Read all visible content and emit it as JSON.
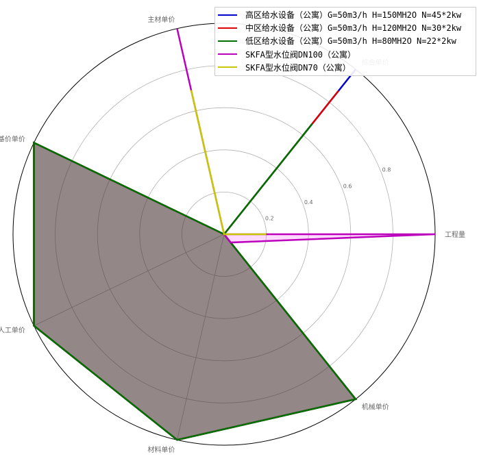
{
  "chart_data": {
    "type": "radar",
    "axes": [
      "工程量",
      "综合单价",
      "主材单价",
      "基价单价",
      "人工单价",
      "材料单价",
      "机械单价"
    ],
    "r_ticks": [
      0.2,
      0.4,
      0.6,
      0.8
    ],
    "r_tick_labels": [
      "0.2",
      "0.4",
      "0.6",
      "0.8"
    ],
    "r_max": 1.0,
    "grid": true,
    "legend_position": "top-right",
    "series": [
      {
        "name": "高区给水设备（公寓）G=50m3/h H=150MH2O N=45*2kw",
        "color": "#0000cc",
        "fill": "#0000cc",
        "values": [
          0.0,
          1.0,
          0.0,
          1.0,
          1.0,
          1.0,
          1.0
        ]
      },
      {
        "name": "中区给水设备（公寓）G=50m3/h H=120MH2O N=30*2kw",
        "color": "#dd0000",
        "fill": "#dd0000",
        "values": [
          0.0,
          0.87,
          0.0,
          1.0,
          1.0,
          1.0,
          1.0
        ]
      },
      {
        "name": "低区给水设备（公寓）G=50m3/h H=80MH2O N=22*2kw",
        "color": "#007000",
        "fill": "#007000",
        "values": [
          0.0,
          0.67,
          0.0,
          1.0,
          1.0,
          1.0,
          1.0
        ]
      },
      {
        "name": "SKFA型水位阀DN100（公寓）",
        "color": "#bb00bb",
        "fill": "#ff66ff",
        "values": [
          1.0,
          0.0,
          1.0,
          0.0,
          0.0,
          0.0,
          0.05
        ]
      },
      {
        "name": "SKFA型水位阀DN70（公寓）",
        "color": "#c8c800",
        "fill": "#c8c800",
        "values": [
          0.2,
          0.0,
          0.7,
          0.0,
          0.0,
          0.0,
          0.0
        ]
      }
    ]
  }
}
